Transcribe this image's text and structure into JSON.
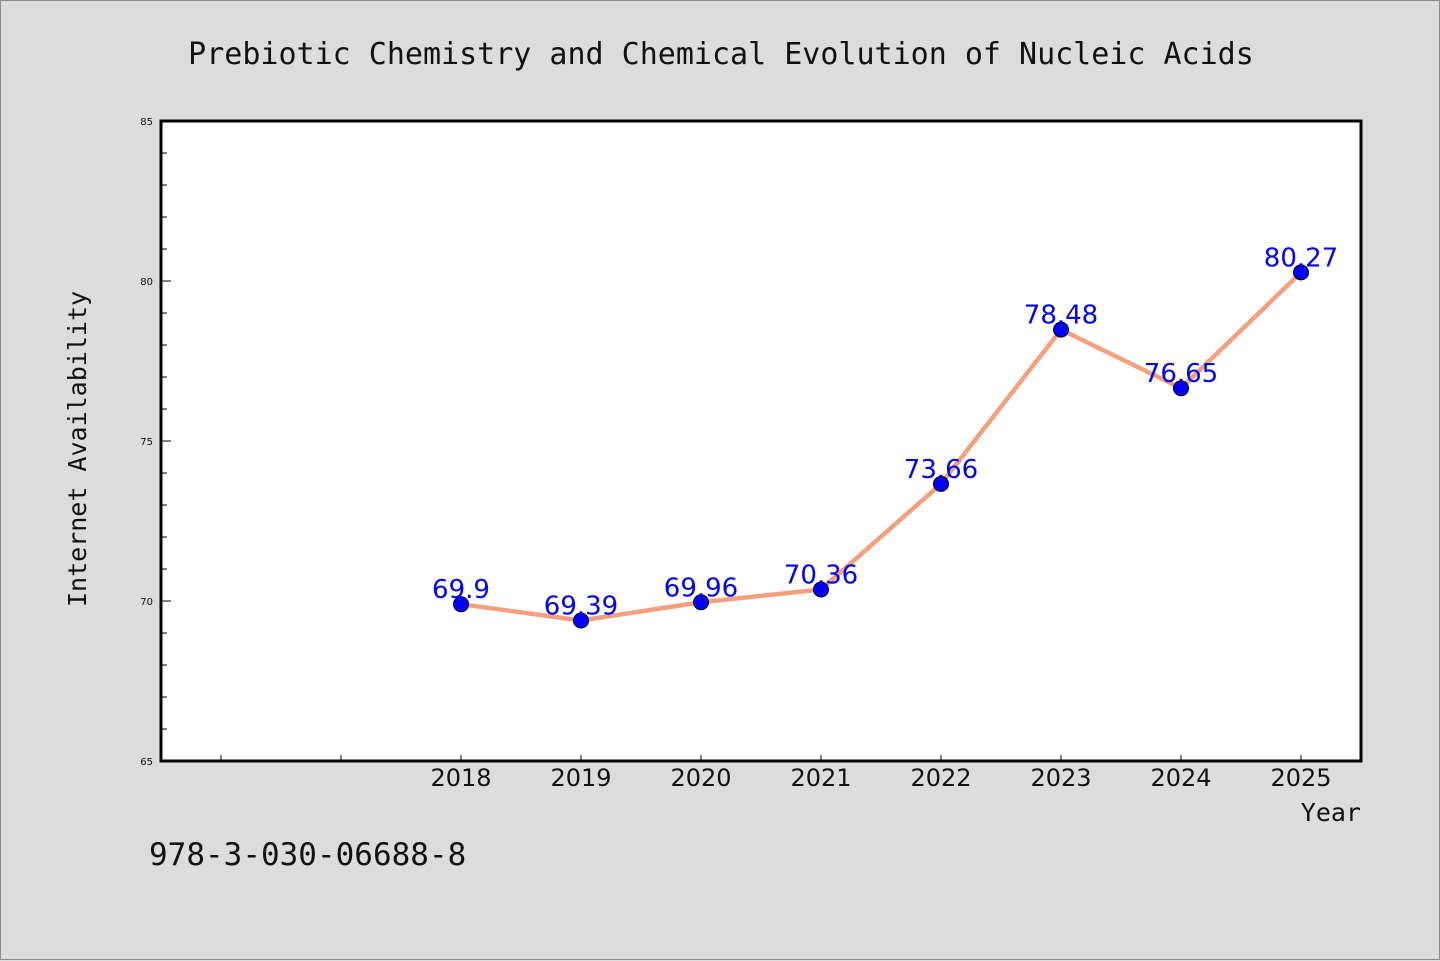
{
  "chart_data": {
    "type": "line",
    "title": "Prebiotic Chemistry and Chemical Evolution of Nucleic Acids",
    "xlabel": "Year",
    "ylabel": "Internet Availability",
    "categories": [
      "2018",
      "2019",
      "2020",
      "2021",
      "2022",
      "2023",
      "2024",
      "2025"
    ],
    "series": [
      {
        "values": [
          69.9,
          69.39,
          69.96,
          70.36,
          73.66,
          78.48,
          76.65,
          80.27
        ]
      }
    ],
    "data_labels": [
      "69.9",
      "69.39",
      "69.96",
      "70.36",
      "73.66",
      "78.48",
      "76.65",
      "80.27"
    ],
    "ylim": [
      65,
      85
    ],
    "y_ticks": [
      "65",
      "70",
      "75",
      "80",
      "85"
    ],
    "grid": false,
    "legend": "none",
    "line_color": "#f4a07f",
    "marker_color": "#0000ff",
    "label_color": "#0000ff"
  },
  "footer": {
    "code": "978-3-030-06688-8"
  }
}
